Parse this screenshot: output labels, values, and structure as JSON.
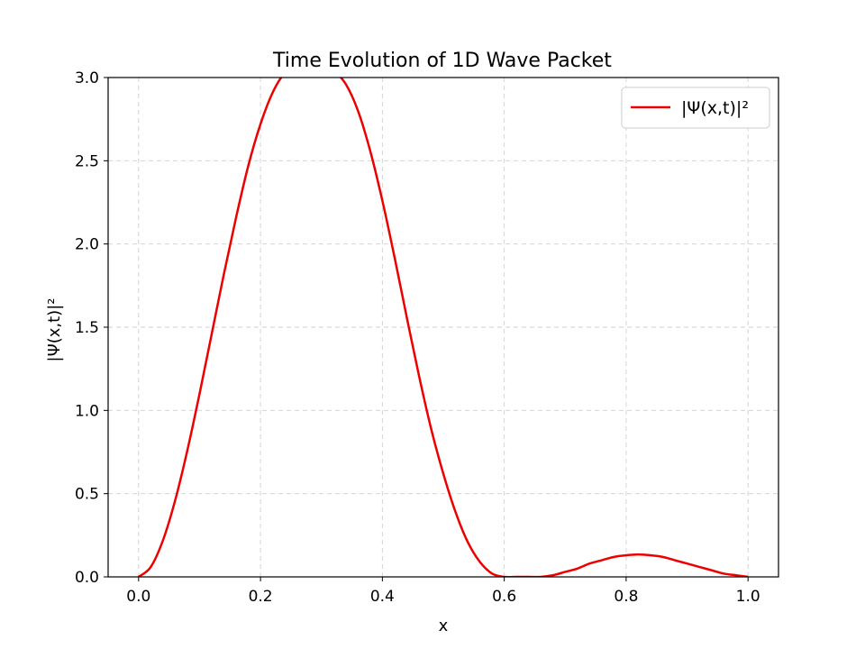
{
  "chart_data": {
    "type": "line",
    "title": "Time Evolution of 1D Wave Packet",
    "xlabel": "x",
    "ylabel": "|Ψ(x,t)|²",
    "xlim": [
      -0.05,
      1.05
    ],
    "ylim": [
      0,
      3.0
    ],
    "x_ticks": [
      "0.0",
      "0.2",
      "0.4",
      "0.6",
      "0.8",
      "1.0"
    ],
    "y_ticks": [
      "0.0",
      "0.5",
      "1.0",
      "1.5",
      "2.0",
      "2.5",
      "3.0"
    ],
    "grid": true,
    "legend_position": "top-right",
    "series": [
      {
        "name": "|Ψ(x,t)|²",
        "color": "#ee0000",
        "x": [
          0.0,
          0.02,
          0.04,
          0.06,
          0.08,
          0.1,
          0.12,
          0.14,
          0.16,
          0.18,
          0.2,
          0.22,
          0.24,
          0.26,
          0.28,
          0.3,
          0.32,
          0.34,
          0.36,
          0.38,
          0.4,
          0.42,
          0.44,
          0.46,
          0.48,
          0.5,
          0.52,
          0.54,
          0.56,
          0.58,
          0.6,
          0.62,
          0.64,
          0.66,
          0.68,
          0.7,
          0.72,
          0.74,
          0.76,
          0.78,
          0.8,
          0.82,
          0.84,
          0.86,
          0.88,
          0.9,
          0.92,
          0.94,
          0.96,
          0.98,
          1.0
        ],
        "y": [
          0.0,
          0.06,
          0.22,
          0.46,
          0.76,
          1.1,
          1.46,
          1.82,
          2.16,
          2.47,
          2.72,
          2.91,
          3.03,
          3.09,
          3.1,
          3.08,
          3.04,
          2.96,
          2.8,
          2.56,
          2.26,
          1.92,
          1.56,
          1.21,
          0.89,
          0.62,
          0.39,
          0.21,
          0.09,
          0.02,
          0.0,
          0.0,
          0.0,
          0.0,
          0.01,
          0.03,
          0.05,
          0.08,
          0.1,
          0.12,
          0.13,
          0.135,
          0.13,
          0.12,
          0.1,
          0.08,
          0.06,
          0.04,
          0.02,
          0.01,
          0.0
        ]
      }
    ]
  }
}
